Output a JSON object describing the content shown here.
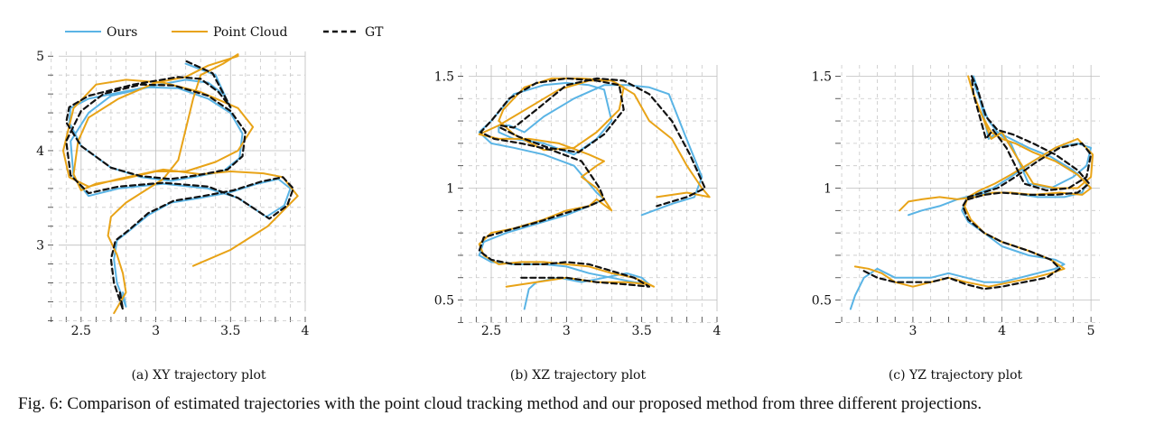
{
  "legend": {
    "items": [
      {
        "label": "Ours",
        "color": "#5ab4e5",
        "dash": false
      },
      {
        "label": "Point Cloud",
        "color": "#e8a317",
        "dash": false
      },
      {
        "label": "GT",
        "color": "#111111",
        "dash": true
      }
    ]
  },
  "caption": "Fig. 6: Comparison of estimated trajectories with the point cloud tracking method and our proposed method from three different projections.",
  "chart_data": [
    {
      "type": "line",
      "subcaption": "(a) XY trajectory plot",
      "xlim": [
        2.35,
        4.0
      ],
      "ylim": [
        2.3,
        5.05
      ],
      "xticks": [
        2.5,
        3,
        3.5,
        4
      ],
      "xtick_labels": [
        "2.5",
        "3",
        "3.5",
        "4"
      ],
      "yticks": [
        3,
        4,
        5
      ],
      "ytick_labels": [
        "3",
        "4",
        "5"
      ],
      "grid": true,
      "series": [
        {
          "name": "Ours",
          "color": "#5ab4e5",
          "x": [
            2.78,
            2.8,
            2.74,
            2.72,
            2.74,
            2.82,
            2.95,
            3.1,
            3.3,
            3.5,
            3.68,
            3.82,
            3.9,
            3.86,
            3.74,
            3.55,
            3.35,
            3.05,
            2.75,
            2.55,
            2.45,
            2.43,
            2.55,
            2.7,
            2.95,
            3.15,
            3.35,
            3.5,
            3.58,
            3.56,
            3.45,
            3.25,
            3.1,
            2.9,
            2.7,
            2.5,
            2.42,
            2.43,
            2.55,
            2.9,
            3.2,
            3.35,
            3.45,
            3.5,
            3.4,
            3.2
          ],
          "y": [
            2.5,
            2.35,
            2.6,
            2.85,
            3.05,
            3.15,
            3.32,
            3.45,
            3.5,
            3.56,
            3.65,
            3.7,
            3.6,
            3.42,
            3.3,
            3.5,
            3.6,
            3.65,
            3.6,
            3.52,
            3.72,
            4.1,
            4.4,
            4.58,
            4.67,
            4.66,
            4.55,
            4.4,
            4.18,
            3.92,
            3.78,
            3.72,
            3.68,
            3.72,
            3.82,
            4.05,
            4.3,
            4.45,
            4.55,
            4.66,
            4.75,
            4.72,
            4.6,
            4.45,
            4.8,
            4.92
          ]
        },
        {
          "name": "Point Cloud",
          "color": "#e8a317",
          "x": [
            3.25,
            3.5,
            3.75,
            3.95,
            3.85,
            3.72,
            3.5,
            3.3,
            3.05,
            2.75,
            2.55,
            2.42,
            2.38,
            2.45,
            2.6,
            2.8,
            3.05,
            3.3,
            3.55,
            3.65,
            3.55,
            3.4,
            3.2,
            3.0,
            2.78,
            2.6,
            2.5,
            2.45,
            2.48,
            2.55,
            2.75,
            3.0,
            3.2,
            3.35,
            3.45,
            3.55,
            3.55,
            3.45,
            3.3,
            3.25,
            3.15,
            3.05,
            2.9,
            2.8,
            2.7,
            2.68,
            2.74,
            2.78,
            2.8,
            2.72
          ],
          "y": [
            2.78,
            2.95,
            3.2,
            3.52,
            3.72,
            3.76,
            3.78,
            3.75,
            3.8,
            3.7,
            3.62,
            3.72,
            4.0,
            4.45,
            4.7,
            4.75,
            4.72,
            4.62,
            4.45,
            4.25,
            4.0,
            3.88,
            3.78,
            3.78,
            3.7,
            3.65,
            3.58,
            3.75,
            4.1,
            4.35,
            4.55,
            4.72,
            4.78,
            4.9,
            4.95,
            5.0,
            5.02,
            4.92,
            4.8,
            4.55,
            3.9,
            3.7,
            3.55,
            3.45,
            3.3,
            3.1,
            2.9,
            2.7,
            2.5,
            2.28
          ]
        },
        {
          "name": "GT",
          "color": "#111111",
          "dash": true,
          "x": [
            2.76,
            2.78,
            2.72,
            2.7,
            2.73,
            2.82,
            2.95,
            3.12,
            3.32,
            3.52,
            3.7,
            3.85,
            3.92,
            3.88,
            3.76,
            3.55,
            3.35,
            3.05,
            2.75,
            2.55,
            2.43,
            2.4,
            2.5,
            2.65,
            2.9,
            3.12,
            3.35,
            3.5,
            3.6,
            3.58,
            3.48,
            3.28,
            3.1,
            2.9,
            2.7,
            2.5,
            2.4,
            2.42,
            2.55,
            2.85,
            3.15,
            3.3,
            3.42,
            3.5,
            3.38,
            3.2
          ],
          "y": [
            2.5,
            2.32,
            2.6,
            2.85,
            3.05,
            3.16,
            3.34,
            3.47,
            3.52,
            3.58,
            3.67,
            3.72,
            3.6,
            3.42,
            3.28,
            3.5,
            3.62,
            3.66,
            3.62,
            3.55,
            3.74,
            4.1,
            4.42,
            4.6,
            4.7,
            4.69,
            4.58,
            4.42,
            4.2,
            3.94,
            3.8,
            3.74,
            3.7,
            3.73,
            3.82,
            4.05,
            4.3,
            4.46,
            4.58,
            4.7,
            4.78,
            4.76,
            4.62,
            4.46,
            4.82,
            4.95
          ]
        }
      ]
    },
    {
      "type": "line",
      "subcaption": "(b) XZ trajectory plot",
      "xlim": [
        2.35,
        4.0
      ],
      "ylim": [
        0.45,
        1.55
      ],
      "xticks": [
        2.5,
        3,
        3.5,
        4
      ],
      "xtick_labels": [
        "2.5",
        "3",
        "3.5",
        "4"
      ],
      "yticks": [
        0.5,
        1,
        1.5
      ],
      "ytick_labels": [
        "0.5",
        "1",
        "1.5"
      ],
      "grid": true,
      "series": [
        {
          "name": "Ours",
          "color": "#5ab4e5",
          "x": [
            2.72,
            2.75,
            2.8,
            2.95,
            3.1,
            3.25,
            3.4,
            3.5,
            3.55,
            3.45,
            3.3,
            3.15,
            3.0,
            2.85,
            2.65,
            2.5,
            2.42,
            2.45,
            2.6,
            2.8,
            3.0,
            3.15,
            3.25,
            3.2,
            3.05,
            2.85,
            2.65,
            2.5,
            2.42,
            2.5,
            2.65,
            2.85,
            3.0,
            3.15,
            3.25,
            3.3,
            3.2,
            3.05,
            2.85,
            2.65,
            2.55,
            2.55,
            2.62,
            2.72,
            2.85,
            3.05,
            3.25,
            3.4,
            3.55,
            3.68,
            3.78,
            3.9,
            3.85,
            3.7,
            3.5
          ],
          "y": [
            0.46,
            0.55,
            0.58,
            0.6,
            0.58,
            0.6,
            0.62,
            0.6,
            0.57,
            0.58,
            0.6,
            0.62,
            0.65,
            0.66,
            0.66,
            0.67,
            0.7,
            0.76,
            0.8,
            0.84,
            0.88,
            0.92,
            0.95,
            0.98,
            1.1,
            1.15,
            1.18,
            1.2,
            1.25,
            1.3,
            1.42,
            1.46,
            1.47,
            1.46,
            1.44,
            1.3,
            1.22,
            1.15,
            1.2,
            1.22,
            1.25,
            1.28,
            1.28,
            1.25,
            1.32,
            1.4,
            1.46,
            1.46,
            1.45,
            1.42,
            1.25,
            1.05,
            0.96,
            0.93,
            0.88
          ]
        },
        {
          "name": "Point Cloud",
          "color": "#e8a317",
          "x": [
            2.6,
            2.8,
            3.0,
            3.2,
            3.4,
            3.55,
            3.58,
            3.45,
            3.3,
            3.15,
            3.0,
            2.85,
            2.7,
            2.55,
            2.45,
            2.42,
            2.5,
            2.65,
            2.85,
            3.0,
            3.15,
            3.2,
            3.3,
            3.2,
            3.1,
            3.2,
            3.25,
            3.15,
            2.95,
            2.75,
            2.55,
            2.42,
            2.55,
            2.75,
            2.95,
            3.15,
            3.3,
            3.38,
            3.35,
            3.2,
            3.05,
            2.85,
            2.65,
            2.55,
            2.58,
            2.72,
            2.9,
            3.1,
            3.3,
            3.45,
            3.55,
            3.7,
            3.8,
            3.9,
            3.95,
            3.8,
            3.6
          ],
          "y": [
            0.56,
            0.58,
            0.6,
            0.58,
            0.58,
            0.57,
            0.56,
            0.6,
            0.62,
            0.65,
            0.66,
            0.67,
            0.67,
            0.66,
            0.7,
            0.75,
            0.8,
            0.82,
            0.86,
            0.9,
            0.92,
            0.95,
            0.9,
            1.0,
            1.05,
            1.1,
            1.12,
            1.15,
            1.2,
            1.22,
            1.22,
            1.24,
            1.28,
            1.36,
            1.44,
            1.48,
            1.48,
            1.45,
            1.35,
            1.25,
            1.18,
            1.17,
            1.24,
            1.3,
            1.35,
            1.45,
            1.49,
            1.49,
            1.48,
            1.42,
            1.3,
            1.22,
            1.1,
            1.0,
            0.96,
            0.98,
            0.96
          ]
        },
        {
          "name": "GT",
          "color": "#111111",
          "dash": true,
          "x": [
            2.7,
            2.8,
            3.0,
            3.2,
            3.4,
            3.55,
            3.45,
            3.3,
            3.15,
            3.0,
            2.85,
            2.65,
            2.5,
            2.42,
            2.45,
            2.6,
            2.82,
            3.0,
            3.15,
            3.25,
            3.22,
            3.1,
            2.9,
            2.7,
            2.52,
            2.43,
            2.5,
            2.62,
            2.8,
            3.0,
            3.2,
            3.35,
            3.38,
            3.25,
            3.08,
            2.88,
            2.68,
            2.56,
            2.56,
            2.65,
            2.8,
            3.0,
            3.2,
            3.38,
            3.55,
            3.7,
            3.82,
            3.92,
            3.8,
            3.6
          ],
          "y": [
            0.6,
            0.6,
            0.6,
            0.58,
            0.57,
            0.56,
            0.6,
            0.63,
            0.66,
            0.67,
            0.66,
            0.66,
            0.68,
            0.72,
            0.78,
            0.81,
            0.85,
            0.89,
            0.92,
            0.95,
            1.0,
            1.12,
            1.17,
            1.2,
            1.22,
            1.25,
            1.3,
            1.4,
            1.47,
            1.49,
            1.48,
            1.46,
            1.35,
            1.24,
            1.16,
            1.18,
            1.23,
            1.27,
            1.28,
            1.27,
            1.35,
            1.46,
            1.49,
            1.48,
            1.42,
            1.3,
            1.15,
            1.0,
            0.96,
            0.92
          ]
        }
      ]
    },
    {
      "type": "line",
      "subcaption": "(c) YZ trajectory plot",
      "xlim": [
        2.25,
        5.1
      ],
      "ylim": [
        0.45,
        1.55
      ],
      "xticks": [
        3,
        4,
        5
      ],
      "xtick_labels": [
        "3",
        "4",
        "5"
      ],
      "yticks": [
        0.5,
        1,
        1.5
      ],
      "ytick_labels": [
        "0.5",
        "1",
        "1.5"
      ],
      "grid": true,
      "series": [
        {
          "name": "Ours",
          "color": "#5ab4e5",
          "x": [
            2.3,
            2.35,
            2.45,
            2.6,
            2.8,
            3.0,
            3.2,
            3.4,
            3.6,
            3.8,
            4.0,
            4.2,
            4.4,
            4.6,
            4.7,
            4.6,
            4.3,
            4.0,
            3.8,
            3.62,
            3.55,
            3.6,
            3.75,
            3.9,
            4.1,
            4.35,
            4.6,
            4.85,
            5.0,
            4.95,
            4.8,
            4.55,
            4.3,
            4.1,
            3.95,
            3.85,
            3.78,
            3.72,
            3.68,
            3.7,
            3.75,
            3.85,
            3.95,
            4.1,
            4.3,
            4.55,
            4.8,
            4.95,
            4.9,
            4.7,
            4.4,
            4.1,
            3.9,
            3.7,
            3.5,
            3.3,
            3.1,
            2.95
          ],
          "y": [
            0.46,
            0.52,
            0.6,
            0.64,
            0.6,
            0.6,
            0.6,
            0.62,
            0.6,
            0.58,
            0.58,
            0.6,
            0.62,
            0.64,
            0.66,
            0.68,
            0.7,
            0.74,
            0.8,
            0.85,
            0.9,
            0.95,
            0.98,
            1.0,
            1.05,
            1.12,
            1.18,
            1.2,
            1.18,
            1.1,
            1.05,
            1.0,
            1.02,
            1.2,
            1.25,
            1.22,
            1.35,
            1.45,
            1.5,
            1.45,
            1.4,
            1.3,
            1.25,
            1.22,
            1.18,
            1.14,
            1.08,
            1.02,
            0.98,
            0.96,
            0.96,
            0.98,
            0.98,
            0.97,
            0.95,
            0.92,
            0.9,
            0.88
          ]
        },
        {
          "name": "Point Cloud",
          "color": "#e8a317",
          "x": [
            2.35,
            2.5,
            2.65,
            2.8,
            3.0,
            3.2,
            3.4,
            3.6,
            3.85,
            4.1,
            4.35,
            4.55,
            4.7,
            4.55,
            4.3,
            4.0,
            3.8,
            3.65,
            3.58,
            3.62,
            3.75,
            3.92,
            4.1,
            4.35,
            4.6,
            4.85,
            5.02,
            5.0,
            4.85,
            4.6,
            4.35,
            4.15,
            4.0,
            3.88,
            3.8,
            3.72,
            3.65,
            3.62,
            3.68,
            3.78,
            3.88,
            4.0,
            4.15,
            4.35,
            4.6,
            4.85,
            5.0,
            4.9,
            4.65,
            4.35,
            4.1,
            3.9,
            3.7,
            3.5,
            3.3,
            3.1,
            2.95,
            2.85
          ],
          "y": [
            0.65,
            0.64,
            0.62,
            0.58,
            0.56,
            0.58,
            0.6,
            0.58,
            0.56,
            0.58,
            0.6,
            0.62,
            0.64,
            0.68,
            0.72,
            0.76,
            0.8,
            0.86,
            0.92,
            0.96,
            0.99,
            1.02,
            1.06,
            1.12,
            1.18,
            1.22,
            1.15,
            1.05,
            1.0,
            1.0,
            1.02,
            1.15,
            1.25,
            1.22,
            1.3,
            1.38,
            1.46,
            1.5,
            1.42,
            1.32,
            1.25,
            1.22,
            1.2,
            1.16,
            1.12,
            1.06,
            1.0,
            0.97,
            0.98,
            0.97,
            0.98,
            0.98,
            0.96,
            0.95,
            0.96,
            0.95,
            0.94,
            0.9
          ]
        },
        {
          "name": "GT",
          "color": "#111111",
          "dash": true,
          "x": [
            2.45,
            2.6,
            2.8,
            3.0,
            3.2,
            3.4,
            3.6,
            3.8,
            4.0,
            4.25,
            4.5,
            4.65,
            4.55,
            4.3,
            4.0,
            3.8,
            3.62,
            3.56,
            3.62,
            3.78,
            3.95,
            4.15,
            4.4,
            4.65,
            4.9,
            5.0,
            4.95,
            4.75,
            4.5,
            4.25,
            4.05,
            3.9,
            3.82,
            3.75,
            3.68,
            3.66,
            3.72,
            3.82,
            3.95,
            4.12,
            4.35,
            4.6,
            4.85,
            4.98,
            4.85,
            4.6,
            4.3,
            4.0,
            3.8,
            3.62
          ],
          "y": [
            0.63,
            0.6,
            0.58,
            0.58,
            0.58,
            0.6,
            0.57,
            0.55,
            0.56,
            0.58,
            0.6,
            0.64,
            0.68,
            0.72,
            0.76,
            0.8,
            0.86,
            0.92,
            0.96,
            0.98,
            1.0,
            1.05,
            1.12,
            1.18,
            1.2,
            1.15,
            1.05,
            1.0,
            0.99,
            1.02,
            1.18,
            1.26,
            1.22,
            1.32,
            1.42,
            1.5,
            1.45,
            1.32,
            1.26,
            1.24,
            1.2,
            1.15,
            1.08,
            1.02,
            0.98,
            0.97,
            0.97,
            0.98,
            0.97,
            0.95
          ]
        }
      ]
    }
  ]
}
